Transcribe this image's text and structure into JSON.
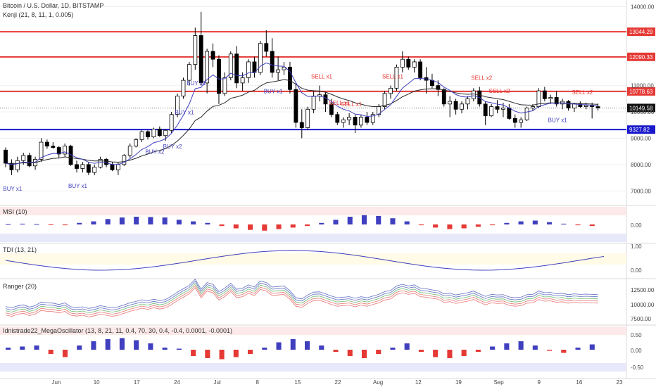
{
  "header": {
    "symbol": "Bitcoin / U.S. Dollar, 1D, BITSTAMP",
    "indicator": "Kenji (21, 8, 11, 1, 0.005)"
  },
  "panes": {
    "msi": {
      "label": "MSI (10)",
      "ticks": [
        "0.00"
      ]
    },
    "tdi": {
      "label": "TDI (13, 21)",
      "ticks": [
        "1.00",
        "0.00"
      ]
    },
    "ranger": {
      "label": "Ranger (20)",
      "ticks": [
        "12500.00",
        "10000.00",
        "7500.00"
      ]
    },
    "mega": {
      "label": "Idnistrade22_MegaOscillator (13, 8, 21, 11, 0.4, 70, 30, 0.4, -0.4, 0.0001, -0.0001)",
      "ticks": [
        "0.50",
        "0.00",
        "-0.50"
      ]
    }
  },
  "colors": {
    "resistance": "#e53935",
    "support": "#1a1acc",
    "bull": "#ffffff",
    "bear": "#000000",
    "buy": "#3f3fbf",
    "sell": "#e53935"
  },
  "chart_data": {
    "type": "candlestick",
    "x_labels": [
      "Jun",
      "10",
      "17",
      "24",
      "Jul",
      "8",
      "15",
      "22",
      "Aug",
      "12",
      "19",
      "Sep",
      "9",
      "16",
      "23"
    ],
    "y_ticks": [
      "14000.00",
      "11000.00",
      "10000.00",
      "9000.00",
      "8000.00",
      "7000.00"
    ],
    "ylim": [
      6500,
      14250
    ],
    "levels": [
      {
        "value": 13044.29,
        "label": "13044.29",
        "kind": "resistance"
      },
      {
        "value": 12090.33,
        "label": "12090.33",
        "kind": "resistance"
      },
      {
        "value": 10778.63,
        "label": "10778.63",
        "kind": "resistance"
      },
      {
        "value": 10149.58,
        "label": "10149.58",
        "kind": "last"
      },
      {
        "value": 9327.82,
        "label": "9327.82",
        "kind": "support"
      }
    ],
    "signals": [
      {
        "text": "BUY x1",
        "type": "buy"
      },
      {
        "text": "BUY x1",
        "type": "buy"
      },
      {
        "text": "BUY x2",
        "type": "buy"
      },
      {
        "text": "BUY x1",
        "type": "buy"
      },
      {
        "text": "BUY x1",
        "type": "buy"
      },
      {
        "text": "BUY x1",
        "type": "buy"
      },
      {
        "text": "BUY x1",
        "type": "buy"
      },
      {
        "text": "BUY x2",
        "type": "buy"
      },
      {
        "text": "SELL x1",
        "type": "sell"
      },
      {
        "text": "SELL x1",
        "type": "sell"
      },
      {
        "text": "SELL x1",
        "type": "sell"
      },
      {
        "text": "SELL x1",
        "type": "sell"
      },
      {
        "text": "SELL x2",
        "type": "sell"
      },
      {
        "text": "SELL x2",
        "type": "sell"
      },
      {
        "text": "SELL x2",
        "type": "sell"
      }
    ],
    "ohlc": [
      [
        8550,
        8650,
        7900,
        8050
      ],
      [
        8050,
        8200,
        7600,
        7800
      ],
      [
        7800,
        8300,
        7700,
        8150
      ],
      [
        8150,
        8450,
        8000,
        8350
      ],
      [
        8350,
        8450,
        7900,
        7950
      ],
      [
        7950,
        8300,
        7800,
        8200
      ],
      [
        8200,
        9000,
        8100,
        8850
      ],
      [
        8850,
        8950,
        8600,
        8700
      ],
      [
        8700,
        8850,
        8600,
        8650
      ],
      [
        8650,
        8700,
        8250,
        8400
      ],
      [
        8400,
        8800,
        8300,
        8700
      ],
      [
        8700,
        8750,
        7950,
        8000
      ],
      [
        8000,
        8150,
        7700,
        7850
      ],
      [
        7850,
        8100,
        7700,
        8000
      ],
      [
        8000,
        8100,
        7600,
        7700
      ],
      [
        7700,
        8000,
        7600,
        7900
      ],
      [
        7900,
        8300,
        7850,
        8200
      ],
      [
        8200,
        8250,
        7900,
        8000
      ],
      [
        8000,
        8100,
        7750,
        7800
      ],
      [
        7800,
        8100,
        7600,
        8000
      ],
      [
        8000,
        8400,
        7950,
        8350
      ],
      [
        8350,
        8800,
        8250,
        8700
      ],
      [
        8700,
        9000,
        8650,
        8950
      ],
      [
        8950,
        9300,
        8850,
        9250
      ],
      [
        9250,
        9300,
        8950,
        9050
      ],
      [
        9050,
        9400,
        9000,
        9350
      ],
      [
        9350,
        9450,
        9050,
        9100
      ],
      [
        9100,
        9350,
        8900,
        9300
      ],
      [
        9300,
        10000,
        9200,
        9900
      ],
      [
        9900,
        10700,
        9800,
        10600
      ],
      [
        10600,
        11300,
        10500,
        11200
      ],
      [
        11200,
        11900,
        11000,
        11800
      ],
      [
        11800,
        13200,
        11600,
        12900
      ],
      [
        12900,
        13800,
        11000,
        11100
      ],
      [
        11100,
        12400,
        10700,
        12300
      ],
      [
        12300,
        12600,
        11700,
        12000
      ],
      [
        12000,
        12150,
        10300,
        10700
      ],
      [
        10700,
        11500,
        10600,
        11300
      ],
      [
        11300,
        12300,
        11200,
        12200
      ],
      [
        12200,
        12500,
        10900,
        11100
      ],
      [
        11100,
        11500,
        10800,
        11300
      ],
      [
        11300,
        12000,
        11100,
        11900
      ],
      [
        11900,
        12100,
        11300,
        11500
      ],
      [
        11500,
        12700,
        11400,
        12600
      ],
      [
        12600,
        13100,
        12100,
        12300
      ],
      [
        12300,
        12800,
        11300,
        11500
      ],
      [
        11500,
        12100,
        11200,
        11600
      ],
      [
        11600,
        11900,
        11400,
        11700
      ],
      [
        11700,
        11900,
        10700,
        10850
      ],
      [
        10850,
        11100,
        9400,
        9600
      ],
      [
        9600,
        10100,
        9000,
        9400
      ],
      [
        9400,
        10200,
        9300,
        10100
      ],
      [
        10100,
        10800,
        9950,
        10600
      ],
      [
        10600,
        11000,
        10400,
        10650
      ],
      [
        10650,
        10750,
        10000,
        10300
      ],
      [
        10300,
        10500,
        9800,
        9900
      ],
      [
        9900,
        10000,
        9500,
        9600
      ],
      [
        9600,
        9800,
        9400,
        9700
      ],
      [
        9700,
        9950,
        9500,
        9800
      ],
      [
        9800,
        9900,
        9200,
        9500
      ],
      [
        9500,
        9900,
        9400,
        9800
      ],
      [
        9800,
        10000,
        9500,
        9600
      ],
      [
        9600,
        10000,
        9500,
        9900
      ],
      [
        9900,
        10300,
        9800,
        10200
      ],
      [
        10200,
        10800,
        10100,
        10700
      ],
      [
        10700,
        11000,
        10500,
        10900
      ],
      [
        10900,
        11800,
        10800,
        11700
      ],
      [
        11700,
        12300,
        11500,
        12000
      ],
      [
        12000,
        12100,
        11600,
        11700
      ],
      [
        11700,
        12000,
        11500,
        11900
      ],
      [
        11900,
        12000,
        11200,
        11300
      ],
      [
        11300,
        11700,
        10700,
        11200
      ],
      [
        11200,
        11450,
        10900,
        11000
      ],
      [
        11000,
        11200,
        10600,
        10850
      ],
      [
        10850,
        10900,
        10200,
        10300
      ],
      [
        10300,
        10600,
        9800,
        10400
      ],
      [
        10400,
        10500,
        9900,
        10100
      ],
      [
        10100,
        10400,
        9950,
        10300
      ],
      [
        10300,
        10600,
        10100,
        10500
      ],
      [
        10500,
        10900,
        10400,
        10800
      ],
      [
        10800,
        10950,
        10200,
        10300
      ],
      [
        10300,
        10400,
        9500,
        9850
      ],
      [
        9850,
        10300,
        9800,
        10200
      ],
      [
        10200,
        10450,
        9950,
        10100
      ],
      [
        10100,
        10350,
        9800,
        10150
      ],
      [
        10150,
        10300,
        9700,
        9750
      ],
      [
        9750,
        9900,
        9400,
        9600
      ],
      [
        9600,
        9800,
        9400,
        9700
      ],
      [
        9700,
        10200,
        9650,
        10150
      ],
      [
        10150,
        10300,
        10050,
        10200
      ],
      [
        10200,
        10900,
        10150,
        10800
      ],
      [
        10800,
        10950,
        10400,
        10500
      ],
      [
        10500,
        10650,
        10300,
        10550
      ],
      [
        10550,
        10800,
        10200,
        10300
      ],
      [
        10300,
        10500,
        10100,
        10400
      ],
      [
        10400,
        10450,
        10050,
        10150
      ],
      [
        10150,
        10350,
        10000,
        10300
      ],
      [
        10300,
        10400,
        10150,
        10200
      ],
      [
        10200,
        10350,
        10100,
        10250
      ],
      [
        10250,
        10350,
        9750,
        10200
      ],
      [
        10200,
        10320,
        10050,
        10150
      ]
    ],
    "panes": {
      "msi": {
        "values": [
          0.02,
          0.05,
          0.03,
          -0.02,
          -0.05,
          0.1,
          0.2,
          0.35,
          0.45,
          0.5,
          0.48,
          0.45,
          0.3,
          0.2,
          0.1,
          -0.1,
          -0.25,
          -0.35,
          -0.4,
          -0.3,
          -0.2,
          -0.1,
          0.1,
          0.3,
          0.5,
          0.6,
          0.55,
          0.4,
          0.2,
          -0.05,
          -0.2,
          -0.3,
          -0.25,
          -0.15,
          -0.05,
          0.1,
          0.2,
          0.25,
          0.15,
          0.05,
          -0.05,
          -0.1
        ]
      },
      "mega": {
        "values": [
          0.1,
          0.15,
          0.2,
          -0.2,
          -0.35,
          0.2,
          0.4,
          0.5,
          0.55,
          0.45,
          0.3,
          0.1,
          0.05,
          -0.3,
          -0.4,
          -0.45,
          -0.35,
          -0.2,
          0.1,
          0.35,
          0.5,
          0.4,
          0.2,
          -0.1,
          -0.3,
          -0.4,
          -0.2,
          0.1,
          0.3,
          -0.1,
          -0.35,
          -0.4,
          -0.3,
          -0.1,
          0.15,
          0.3,
          0.4,
          0.2,
          -0.05,
          -0.15,
          0.1,
          0.25
        ]
      }
    }
  }
}
